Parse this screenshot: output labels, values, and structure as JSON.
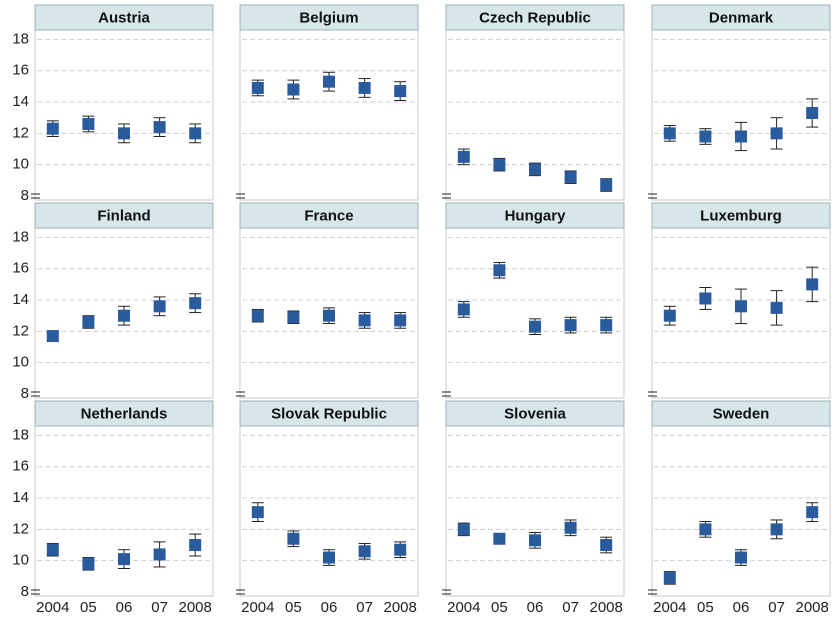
{
  "chart_data": {
    "type": "errorbar",
    "categories": [
      "2004",
      "05",
      "06",
      "07",
      "2008"
    ],
    "ylim": [
      8,
      18.6
    ],
    "yticks": [
      8,
      10,
      12,
      14,
      16,
      18
    ],
    "grid": true,
    "color": "#2a5b9c",
    "panels": [
      {
        "title": "Austria",
        "values": [
          12.3,
          12.6,
          12.0,
          12.4,
          12.0
        ],
        "errors": [
          0.5,
          0.5,
          0.6,
          0.6,
          0.6
        ]
      },
      {
        "title": "Belgium",
        "values": [
          14.9,
          14.8,
          15.3,
          14.9,
          14.7
        ],
        "errors": [
          0.5,
          0.6,
          0.6,
          0.6,
          0.6
        ]
      },
      {
        "title": "Czech Republic",
        "values": [
          10.5,
          10.0,
          9.7,
          9.2,
          8.7
        ],
        "errors": [
          0.5,
          0.4,
          0.4,
          0.4,
          0.4
        ]
      },
      {
        "title": "Denmark",
        "values": [
          12.0,
          11.8,
          11.8,
          12.0,
          13.3
        ],
        "errors": [
          0.5,
          0.5,
          0.9,
          1.0,
          0.9
        ]
      },
      {
        "title": "Finland",
        "values": [
          11.7,
          12.6,
          13.0,
          13.6,
          13.8
        ],
        "errors": [
          0.3,
          0.4,
          0.6,
          0.6,
          0.6
        ]
      },
      {
        "title": "France",
        "values": [
          13.0,
          12.9,
          13.0,
          12.7,
          12.7
        ],
        "errors": [
          0.4,
          0.4,
          0.5,
          0.5,
          0.5
        ]
      },
      {
        "title": "Hungary",
        "values": [
          13.4,
          15.9,
          12.3,
          12.4,
          12.4
        ],
        "errors": [
          0.5,
          0.5,
          0.5,
          0.5,
          0.5
        ]
      },
      {
        "title": "Luxemburg",
        "values": [
          13.0,
          14.1,
          13.6,
          13.5,
          15.0
        ],
        "errors": [
          0.6,
          0.7,
          1.1,
          1.1,
          1.1
        ]
      },
      {
        "title": "Netherlands",
        "values": [
          10.7,
          9.8,
          10.1,
          10.4,
          11.0
        ],
        "errors": [
          0.4,
          0.4,
          0.6,
          0.8,
          0.7
        ]
      },
      {
        "title": "Slovak Republic",
        "values": [
          13.1,
          11.4,
          10.2,
          10.6,
          10.7
        ],
        "errors": [
          0.6,
          0.5,
          0.5,
          0.5,
          0.5
        ]
      },
      {
        "title": "Slovenia",
        "values": [
          12.0,
          11.4,
          11.3,
          12.1,
          11.0
        ],
        "errors": [
          0.4,
          0.3,
          0.5,
          0.5,
          0.5
        ]
      },
      {
        "title": "Sweden",
        "values": [
          8.9,
          12.0,
          10.2,
          12.0,
          13.1
        ],
        "errors": [
          0.4,
          0.5,
          0.5,
          0.6,
          0.6
        ]
      }
    ]
  }
}
